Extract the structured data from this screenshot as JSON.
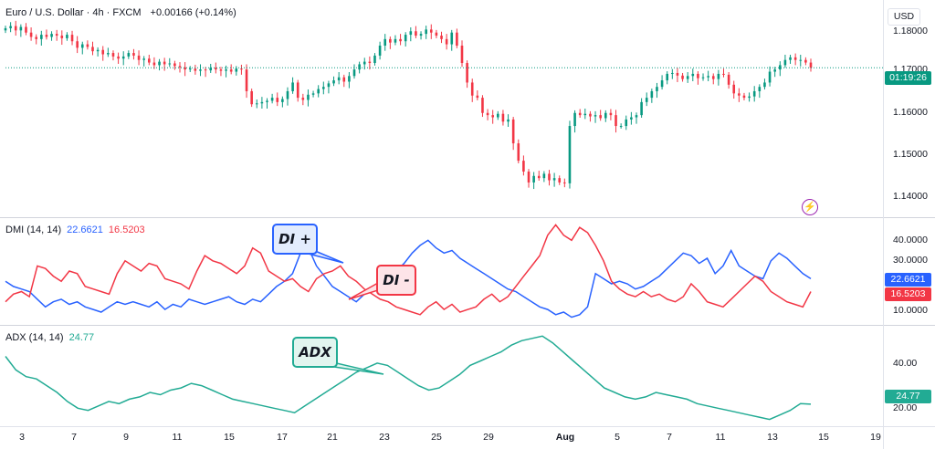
{
  "header": {
    "symbol": "Euro / U.S. Dollar · 4h · FXCM",
    "change": "+0.00166 (+0.14%)",
    "currency_button": "USD"
  },
  "price_pane": {
    "ticks": [
      "1.18000",
      "1.17000",
      "1.16000",
      "1.15000",
      "1.14000"
    ],
    "countdown": "01:19:26",
    "price_tag_color": "#089981",
    "up_color": "#089981",
    "down_color": "#f23645",
    "icon": "lightning-icon"
  },
  "dmi_pane": {
    "title": "DMI (14, 14)",
    "di_plus_value": "22.6621",
    "di_minus_value": "16.5203",
    "di_plus_color": "#2962ff",
    "di_minus_color": "#f23645",
    "ticks": [
      "40.0000",
      "30.0000",
      "10.0000"
    ],
    "callout_plus": "DI +",
    "callout_minus": "DI -"
  },
  "adx_pane": {
    "title": "ADX (14, 14)",
    "value": "24.77",
    "color": "#22ab94",
    "ticks": [
      "40.00",
      "20.00"
    ],
    "callout": "ADX"
  },
  "x_axis": {
    "labels": [
      "3",
      "7",
      "9",
      "11",
      "15",
      "17",
      "21",
      "23",
      "25",
      "29",
      "Aug",
      "5",
      "7",
      "11",
      "13",
      "15",
      "19"
    ]
  },
  "chart_data": [
    {
      "type": "candlestick",
      "title": "Euro / U.S. Dollar · 4h · FXCM",
      "ylim": [
        1.135,
        1.185
      ],
      "close": [
        1.1785,
        1.179,
        1.178,
        1.1788,
        1.1775,
        1.1765,
        1.176,
        1.177,
        1.1765,
        1.1772,
        1.1768,
        1.1762,
        1.177,
        1.1755,
        1.174,
        1.1748,
        1.1742,
        1.1732,
        1.1735,
        1.1725,
        1.1728,
        1.172,
        1.1715,
        1.172,
        1.1728,
        1.1722,
        1.1712,
        1.1715,
        1.1706,
        1.17,
        1.1708,
        1.1702,
        1.1704,
        1.1698,
        1.1695,
        1.169,
        1.1692,
        1.1687,
        1.169,
        1.1688,
        1.1694,
        1.169,
        1.1687,
        1.169,
        1.1685,
        1.1692,
        1.169,
        1.164,
        1.161,
        1.1612,
        1.1615,
        1.1618,
        1.1625,
        1.1615,
        1.1622,
        1.164,
        1.166,
        1.1625,
        1.162,
        1.1632,
        1.1635,
        1.1645,
        1.165,
        1.1658,
        1.1665,
        1.1672,
        1.1662,
        1.1675,
        1.169,
        1.1702,
        1.1708,
        1.1705,
        1.1722,
        1.1745,
        1.176,
        1.1752,
        1.176,
        1.1755,
        1.177,
        1.1778,
        1.1768,
        1.1772,
        1.1782,
        1.1775,
        1.1768,
        1.176,
        1.1748,
        1.1775,
        1.1745,
        1.1705,
        1.166,
        1.163,
        1.1625,
        1.159,
        1.1585,
        1.158,
        1.1588,
        1.157,
        1.1575,
        1.152,
        1.148,
        1.1455,
        1.143,
        1.1445,
        1.144,
        1.145,
        1.1435,
        1.144,
        1.143,
        1.1428,
        1.156,
        1.159,
        1.1585,
        1.1588,
        1.1582,
        1.1585,
        1.1578,
        1.159,
        1.1585,
        1.156,
        1.156,
        1.1575,
        1.158,
        1.1585,
        1.1615,
        1.1625,
        1.164,
        1.165,
        1.1665,
        1.168,
        1.1682,
        1.1676,
        1.1668,
        1.1675,
        1.168,
        1.167,
        1.1672,
        1.1675,
        1.1668,
        1.168,
        1.1678,
        1.1655,
        1.1635,
        1.163,
        1.1625,
        1.1628,
        1.164,
        1.165,
        1.166,
        1.1685,
        1.169,
        1.17,
        1.1712,
        1.1718,
        1.1712,
        1.1712,
        1.1706,
        1.1694
      ]
    },
    {
      "type": "line",
      "title": "DMI (14, 14)",
      "ylim": [
        5,
        47
      ],
      "series": [
        {
          "name": "DI +",
          "values": [
            22,
            20,
            19,
            18,
            15,
            12,
            14,
            15,
            13,
            14,
            12,
            11,
            10,
            12,
            14,
            13,
            14,
            13,
            12,
            14,
            11,
            13,
            12,
            15,
            14,
            13,
            14,
            15,
            16,
            14,
            13,
            15,
            14,
            17,
            20,
            22,
            25,
            33,
            35,
            28,
            24,
            20,
            18,
            16,
            14,
            17,
            18,
            20,
            23,
            26,
            29,
            33,
            36,
            38,
            35,
            33,
            34,
            31,
            29,
            27,
            25,
            23,
            21,
            19,
            18,
            16,
            14,
            12,
            11,
            9,
            10,
            8,
            9,
            12,
            25,
            23,
            21,
            22,
            21,
            19,
            20,
            22,
            24,
            27,
            30,
            33,
            32,
            29,
            31,
            25,
            28,
            34,
            28,
            26,
            24,
            23,
            30,
            33,
            31,
            28,
            25,
            23
          ]
        },
        {
          "name": "DI -",
          "values": [
            14,
            17,
            18,
            16,
            28,
            27,
            24,
            22,
            26,
            25,
            20,
            19,
            18,
            17,
            25,
            30,
            28,
            26,
            29,
            28,
            23,
            22,
            21,
            19,
            26,
            32,
            30,
            29,
            27,
            25,
            28,
            35,
            33,
            26,
            24,
            22,
            23,
            20,
            18,
            23,
            25,
            26,
            28,
            24,
            22,
            19,
            17,
            15,
            14,
            12,
            11,
            10,
            9,
            12,
            14,
            11,
            13,
            10,
            11,
            12,
            15,
            17,
            14,
            16,
            20,
            24,
            28,
            32,
            40,
            44,
            40,
            38,
            43,
            41,
            36,
            30,
            22,
            19,
            17,
            16,
            18,
            16,
            17,
            15,
            14,
            16,
            21,
            18,
            14,
            13,
            12,
            15,
            18,
            21,
            24,
            22,
            18,
            16,
            14,
            13,
            12,
            18
          ]
        }
      ]
    },
    {
      "type": "line",
      "title": "ADX (14, 14)",
      "ylim": [
        15,
        60
      ],
      "series": [
        {
          "name": "ADX",
          "values": [
            46,
            40,
            37,
            36,
            33,
            30,
            26,
            23,
            22,
            24,
            26,
            25,
            27,
            28,
            30,
            29,
            31,
            32,
            34,
            33,
            31,
            29,
            27,
            26,
            25,
            24,
            23,
            22,
            21,
            24,
            27,
            30,
            33,
            36,
            39,
            41,
            43,
            42,
            39,
            36,
            33,
            31,
            32,
            35,
            38,
            42,
            44,
            46,
            48,
            51,
            53,
            54,
            55,
            52,
            48,
            44,
            40,
            36,
            32,
            30,
            28,
            27,
            28,
            30,
            29,
            28,
            27,
            25,
            24,
            23,
            22,
            21,
            20,
            19,
            18,
            20,
            22,
            25,
            24.77
          ]
        }
      ]
    }
  ]
}
